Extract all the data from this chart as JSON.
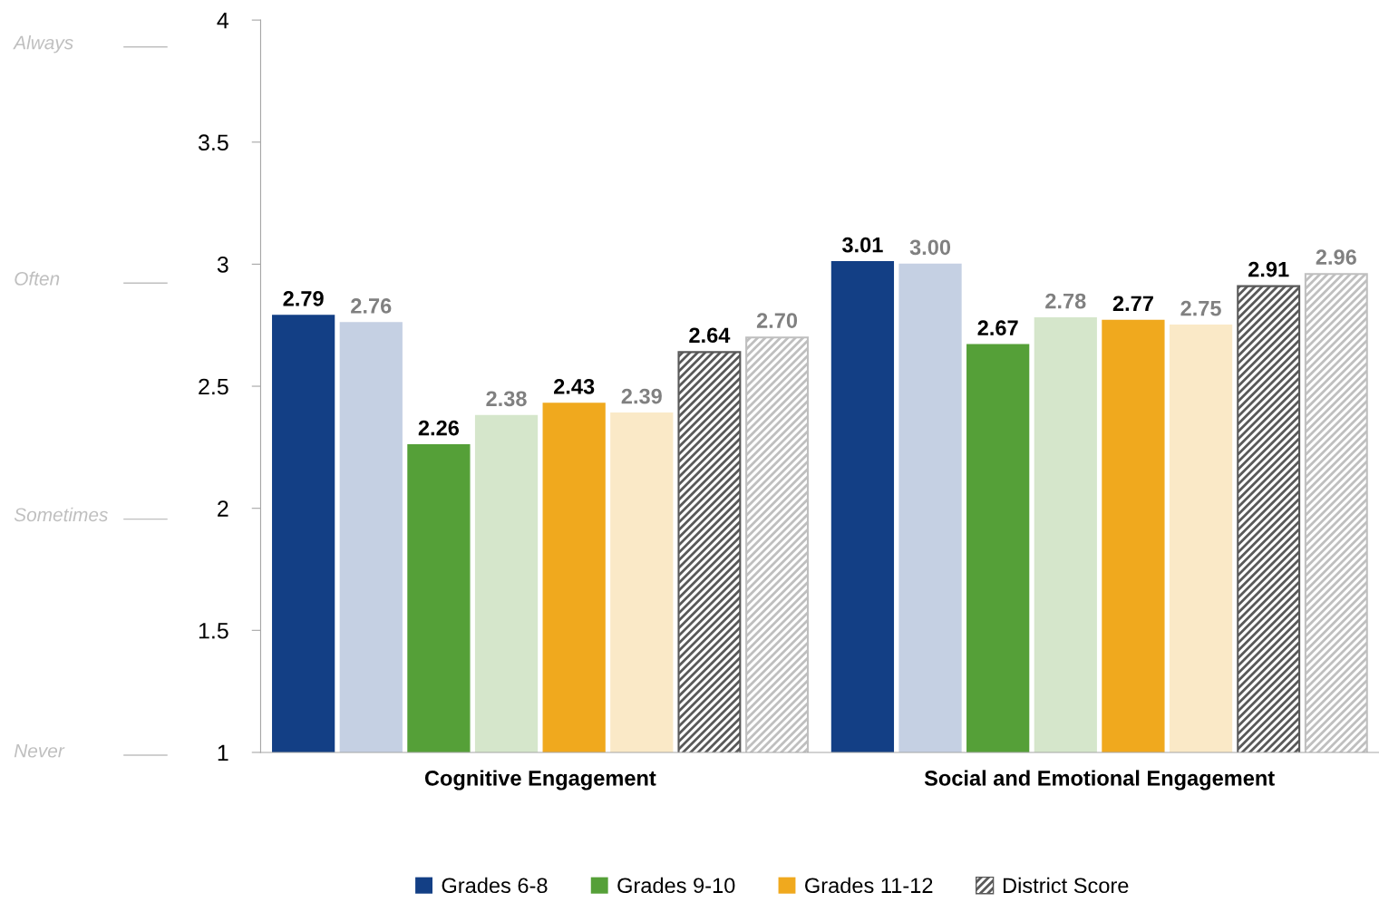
{
  "chart_data": {
    "type": "bar",
    "categories": [
      "Cognitive Engagement",
      "Social and Emotional Engagement"
    ],
    "series": [
      {
        "name": "Grades 6-8",
        "color": "#133f85",
        "values": [
          2.79,
          3.01
        ],
        "value_labels": [
          "2.79",
          "3.01"
        ]
      },
      {
        "color": "#c5d0e3",
        "values": [
          2.76,
          3.0
        ],
        "value_labels": [
          "2.76",
          "3.00"
        ]
      },
      {
        "name": "Grades 9-10",
        "color": "#55a038",
        "values": [
          2.26,
          2.67
        ],
        "value_labels": [
          "2.26",
          "2.67"
        ]
      },
      {
        "color": "#d5e6cb",
        "values": [
          2.38,
          2.78
        ],
        "value_labels": [
          "2.38",
          "2.78"
        ]
      },
      {
        "name": "Grades 11-12",
        "color": "#f0a91e",
        "values": [
          2.43,
          2.77
        ],
        "value_labels": [
          "2.43",
          "2.77"
        ]
      },
      {
        "color": "#fae9c7",
        "values": [
          2.39,
          2.75
        ],
        "value_labels": [
          "2.39",
          "2.75"
        ]
      },
      {
        "name": "District Score",
        "color": "#595959",
        "values": [
          2.64,
          2.91
        ],
        "value_labels": [
          "2.64",
          "2.91"
        ]
      },
      {
        "color": "#bfbfbf",
        "values": [
          2.7,
          2.96
        ],
        "value_labels": [
          "2.70",
          "2.96"
        ]
      }
    ],
    "ylim": [
      1,
      4
    ],
    "yticks": [
      1,
      1.5,
      2,
      2.5,
      3,
      3.5,
      4
    ],
    "annotations": [
      "Always",
      "Often",
      "Sometimes",
      "Never"
    ],
    "grid": false,
    "legend": "bottom"
  }
}
